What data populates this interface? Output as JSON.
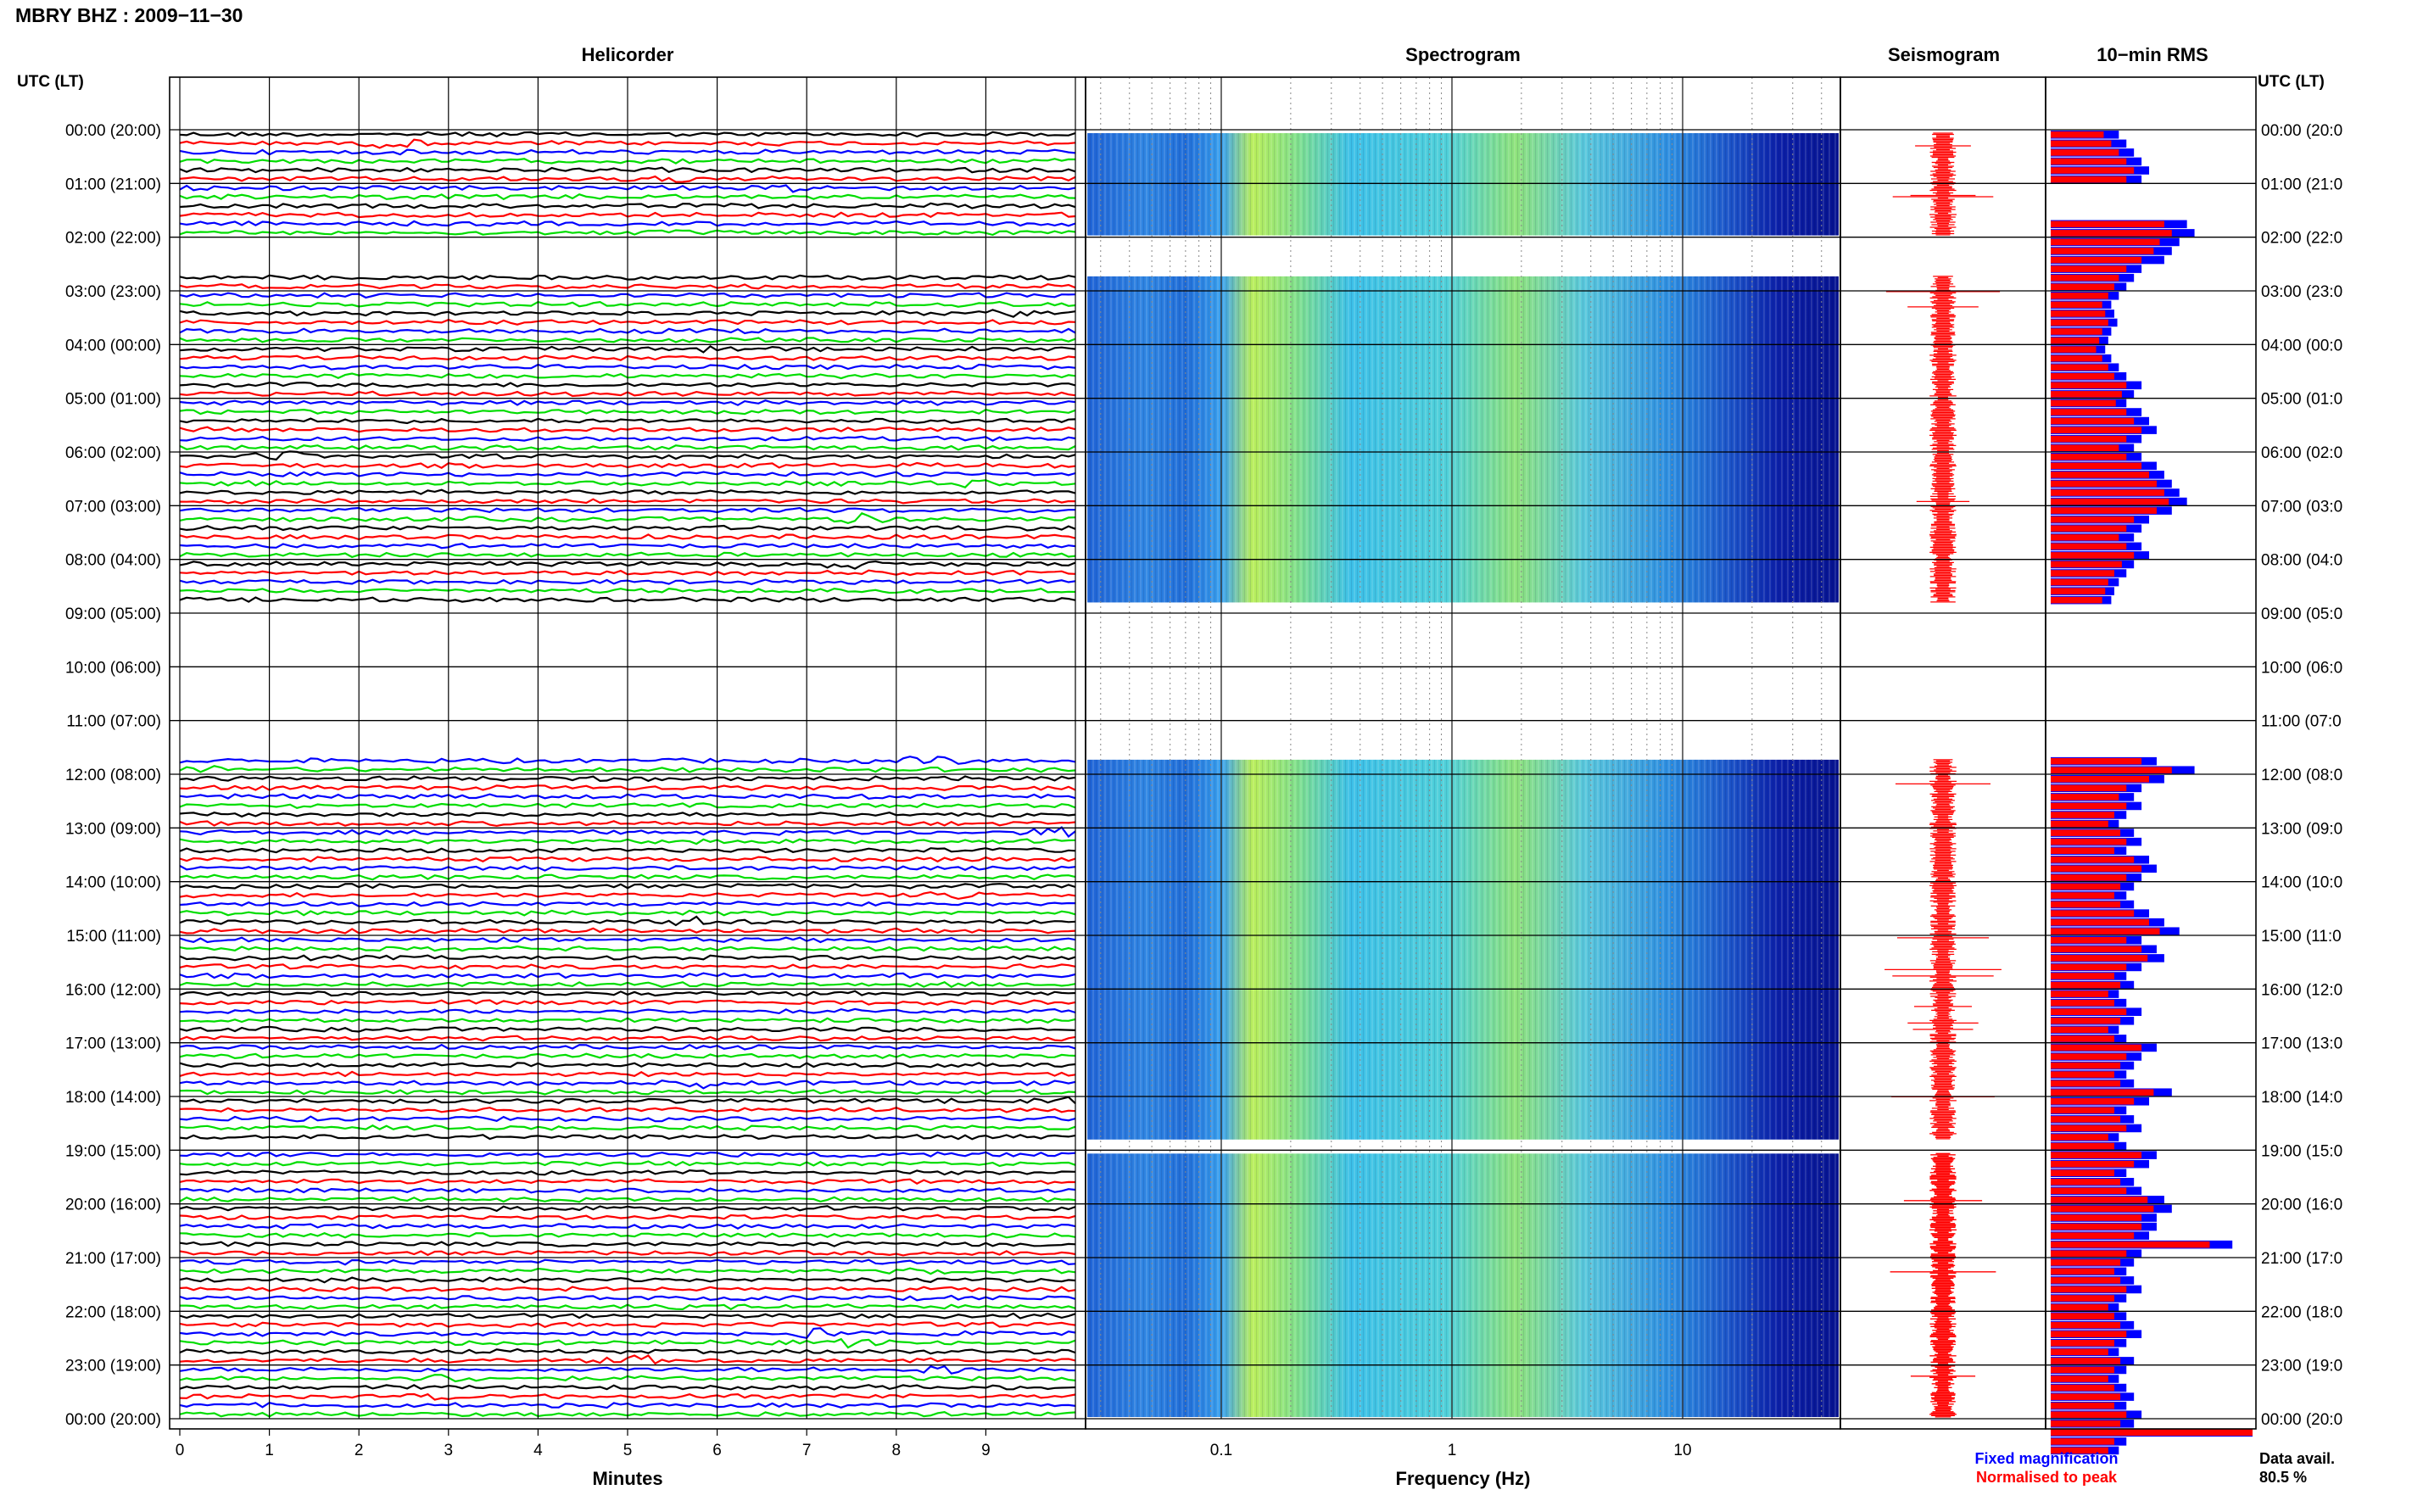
{
  "header": {
    "title": "MBRY BHZ : 2009−11−30"
  },
  "panels": {
    "helicorder": "Helicorder",
    "spectrogram": "Spectrogram",
    "seismogram": "Seismogram",
    "rms": "10−min RMS"
  },
  "axis": {
    "left_header": "UTC (LT)",
    "right_header": "UTC (LT)",
    "time_labels": [
      "00:00 (20:00)",
      "01:00 (21:00)",
      "02:00 (22:00)",
      "03:00 (23:00)",
      "04:00 (00:00)",
      "05:00 (01:00)",
      "06:00 (02:00)",
      "07:00 (03:00)",
      "08:00 (04:00)",
      "09:00 (05:00)",
      "10:00 (06:00)",
      "11:00 (07:00)",
      "12:00 (08:00)",
      "13:00 (09:00)",
      "14:00 (10:00)",
      "15:00 (11:00)",
      "16:00 (12:00)",
      "17:00 (13:00)",
      "18:00 (14:00)",
      "19:00 (15:00)",
      "20:00 (16:00)",
      "21:00 (17:00)",
      "22:00 (18:00)",
      "23:00 (19:00)",
      "00:00 (20:00)"
    ],
    "right_time_labels": [
      "00:00 (20:0",
      "01:00 (21:0",
      "02:00 (22:0",
      "03:00 (23:0",
      "04:00 (00:0",
      "05:00 (01:0",
      "06:00 (02:0",
      "07:00 (03:0",
      "08:00 (04:0",
      "09:00 (05:0",
      "10:00 (06:0",
      "11:00 (07:0",
      "12:00 (08:0",
      "13:00 (09:0",
      "14:00 (10:0",
      "15:00 (11:0",
      "16:00 (12:0",
      "17:00 (13:0",
      "18:00 (14:0",
      "19:00 (15:0",
      "20:00 (16:0",
      "21:00 (17:0",
      "22:00 (18:0",
      "23:00 (19:0",
      "00:00 (20:0"
    ],
    "minutes_label": "Minutes",
    "minute_ticks": [
      "0",
      "1",
      "2",
      "3",
      "4",
      "5",
      "6",
      "7",
      "8",
      "9"
    ],
    "frequency_label": "Frequency (Hz)",
    "freq_ticks": [
      "0.1",
      "1",
      "10"
    ]
  },
  "legend": {
    "fixed": "Fixed magnification",
    "fixed_color": "#0000ff",
    "normalised": "Normalised to peak",
    "normalised_color": "#ff0000",
    "availability_label": "Data avail.",
    "availability_value": "80.5 %"
  },
  "chart_data": {
    "type": "heatmap",
    "station": "MBRY",
    "channel": "BHZ",
    "date": "2009-11-30",
    "trace_colors": [
      "#000000",
      "#ff0000",
      "#0000ff",
      "#00dd00"
    ],
    "hours": 24,
    "minutes_per_line": 10,
    "helicorder_xlim": [
      0,
      10
    ],
    "spectrogram_freq_range_hz": [
      0.02,
      50
    ],
    "freq_scale": "log",
    "data_gaps_utc": [
      [
        "02:00",
        "02:40"
      ],
      [
        "08:50",
        "11:40"
      ],
      [
        "18:50",
        "19:00"
      ]
    ],
    "rms_10min_fixed": [
      0.45,
      0.5,
      0.55,
      0.6,
      0.65,
      0.6,
      null,
      null,
      null,
      null,
      0.9,
      0.95,
      0.85,
      0.8,
      0.75,
      0.6,
      0.55,
      0.5,
      0.45,
      0.4,
      0.42,
      0.44,
      0.4,
      0.38,
      0.36,
      0.4,
      0.45,
      0.5,
      0.6,
      0.55,
      0.5,
      0.6,
      0.65,
      0.7,
      0.6,
      0.55,
      0.6,
      0.7,
      0.75,
      0.8,
      0.85,
      0.9,
      0.8,
      0.65,
      0.6,
      0.55,
      0.6,
      0.65,
      0.55,
      0.5,
      0.45,
      0.42,
      0.4,
      null,
      null,
      null,
      null,
      null,
      null,
      null,
      null,
      null,
      null,
      null,
      null,
      null,
      null,
      null,
      null,
      null,
      0.7,
      0.95,
      0.75,
      0.6,
      0.55,
      0.6,
      0.5,
      0.45,
      0.55,
      0.6,
      0.5,
      0.65,
      0.7,
      0.6,
      0.55,
      0.5,
      0.55,
      0.65,
      0.75,
      0.85,
      0.6,
      0.7,
      0.75,
      0.6,
      0.5,
      0.55,
      0.45,
      0.5,
      0.6,
      0.55,
      0.45,
      0.5,
      0.7,
      0.6,
      0.55,
      0.5,
      0.55,
      0.8,
      0.65,
      0.5,
      0.55,
      0.6,
      0.45,
      0.5,
      0.7,
      0.65,
      0.5,
      0.55,
      0.6,
      0.75,
      0.8,
      0.7,
      0.7,
      0.65,
      1.2,
      0.6,
      0.55,
      0.5,
      0.55,
      0.6,
      0.5,
      0.45,
      0.5,
      0.55,
      0.6,
      0.5,
      0.45,
      0.55,
      0.5,
      0.45,
      0.5,
      0.55,
      0.5,
      0.6,
      0.55,
      1.5,
      0.5,
      0.45
    ],
    "rms_10min_normalised": [
      0.35,
      0.4,
      0.45,
      0.5,
      0.55,
      0.5,
      null,
      null,
      null,
      null,
      0.75,
      0.8,
      0.72,
      0.68,
      0.6,
      0.5,
      0.45,
      0.42,
      0.38,
      0.34,
      0.36,
      0.38,
      0.34,
      0.32,
      0.3,
      0.34,
      0.38,
      0.42,
      0.5,
      0.47,
      0.43,
      0.5,
      0.55,
      0.6,
      0.5,
      0.45,
      0.5,
      0.6,
      0.65,
      0.7,
      0.75,
      0.78,
      0.7,
      0.55,
      0.5,
      0.45,
      0.5,
      0.55,
      0.47,
      0.42,
      0.38,
      0.36,
      0.34,
      null,
      null,
      null,
      null,
      null,
      null,
      null,
      null,
      null,
      null,
      null,
      null,
      null,
      null,
      null,
      null,
      null,
      0.6,
      0.8,
      0.65,
      0.5,
      0.45,
      0.5,
      0.42,
      0.38,
      0.46,
      0.5,
      0.42,
      0.55,
      0.6,
      0.5,
      0.46,
      0.42,
      0.46,
      0.55,
      0.65,
      0.72,
      0.5,
      0.6,
      0.64,
      0.5,
      0.42,
      0.46,
      0.38,
      0.42,
      0.5,
      0.46,
      0.38,
      0.42,
      0.6,
      0.5,
      0.46,
      0.42,
      0.46,
      0.68,
      0.55,
      0.42,
      0.46,
      0.5,
      0.38,
      0.42,
      0.6,
      0.55,
      0.42,
      0.46,
      0.5,
      0.64,
      0.68,
      0.6,
      0.6,
      0.55,
      1.05,
      0.5,
      0.46,
      0.42,
      0.46,
      0.5,
      0.42,
      0.38,
      0.42,
      0.46,
      0.5,
      0.42,
      0.38,
      0.46,
      0.42,
      0.38,
      0.42,
      0.46,
      0.42,
      0.5,
      0.46,
      1.4,
      0.42,
      0.38
    ]
  }
}
